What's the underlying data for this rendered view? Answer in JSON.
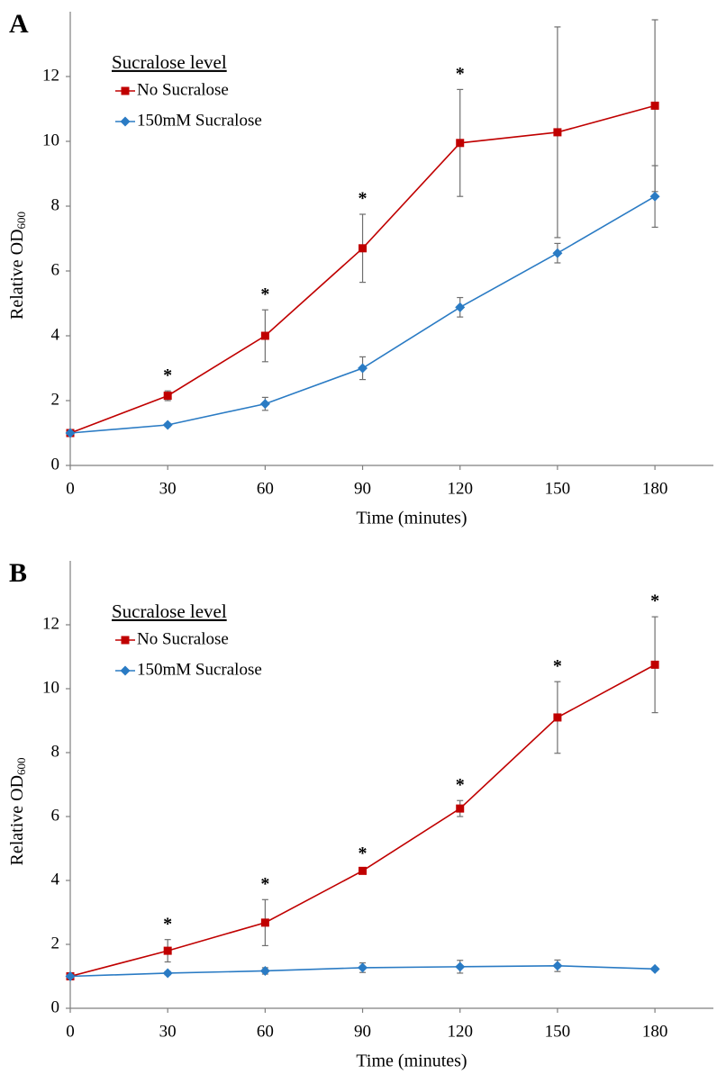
{
  "chart_data": [
    {
      "type": "line",
      "panel_label": "A",
      "x_label": "Time (minutes)",
      "y_label": "Relative OD",
      "y_label_sub": "600",
      "legend_title": "Sucralose level",
      "x": [
        0,
        30,
        60,
        90,
        120,
        150,
        180
      ],
      "xlim": [
        0,
        198
      ],
      "xticks": [
        0,
        30,
        60,
        90,
        120,
        150,
        180
      ],
      "ylim": [
        0,
        14
      ],
      "yticks": [
        0,
        2,
        4,
        6,
        8,
        10,
        12
      ],
      "series": [
        {
          "name": "No Sucralose",
          "color": "#c00000",
          "marker": "square",
          "values": [
            1,
            2.15,
            4.0,
            6.7,
            9.95,
            10.28,
            11.1
          ],
          "errors": [
            0,
            0.15,
            0.8,
            1.05,
            1.65,
            3.25,
            2.65
          ],
          "annotations": [
            null,
            "*",
            "*",
            "*",
            "*",
            null,
            null
          ]
        },
        {
          "name": "150mM Sucralose",
          "color": "#2a7bc4",
          "marker": "diamond",
          "values": [
            1,
            1.25,
            1.9,
            3.0,
            4.88,
            6.55,
            8.3
          ],
          "errors": [
            0,
            0.05,
            0.2,
            0.35,
            0.3,
            0.3,
            0.95
          ]
        }
      ]
    },
    {
      "type": "line",
      "panel_label": "B",
      "x_label": "Time (minutes)",
      "y_label": "Relative OD",
      "y_label_sub": "600",
      "legend_title": "Sucralose level",
      "x": [
        0,
        30,
        60,
        90,
        120,
        150,
        180
      ],
      "xlim": [
        0,
        198
      ],
      "xticks": [
        0,
        30,
        60,
        90,
        120,
        150,
        180
      ],
      "ylim": [
        0,
        14
      ],
      "yticks": [
        0,
        2,
        4,
        6,
        8,
        10,
        12
      ],
      "series": [
        {
          "name": "No Sucralose",
          "color": "#c00000",
          "marker": "square",
          "values": [
            1,
            1.8,
            2.68,
            4.3,
            6.25,
            9.1,
            10.75
          ],
          "errors": [
            0,
            0.35,
            0.72,
            0.05,
            0.25,
            1.12,
            1.5
          ],
          "annotations": [
            null,
            "*",
            "*",
            "*",
            "*",
            "*",
            "*"
          ]
        },
        {
          "name": "150mM Sucralose",
          "color": "#2a7bc4",
          "marker": "diamond",
          "values": [
            1,
            1.1,
            1.17,
            1.27,
            1.3,
            1.33,
            1.23
          ],
          "errors": [
            0,
            0.05,
            0.1,
            0.15,
            0.2,
            0.18,
            0.05
          ]
        }
      ]
    }
  ]
}
